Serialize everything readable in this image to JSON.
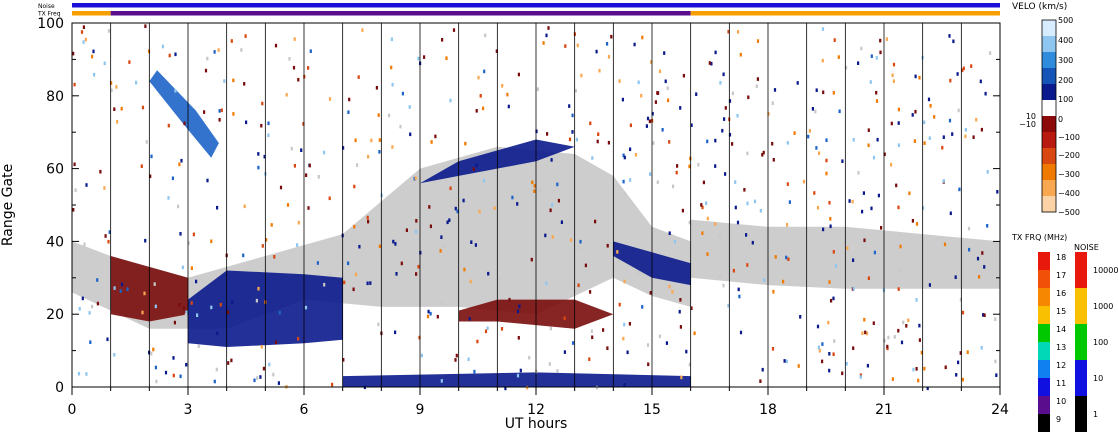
{
  "chart_data": {
    "type": "heatmap",
    "xlabel": "UT hours",
    "ylabel": "Range Gate",
    "xlim": [
      0,
      24
    ],
    "ylim": [
      0,
      100
    ],
    "x_ticks": [
      "0",
      "3",
      "6",
      "9",
      "12",
      "15",
      "18",
      "21",
      "24"
    ],
    "y_ticks": [
      "0",
      "20",
      "40",
      "60",
      "80",
      "100"
    ],
    "grid": "vertical lines every hour",
    "top_bars": {
      "noise_label": "Noise",
      "txfreq_label": "TX Freq",
      "noise_color": "#1a10d8",
      "txfreq_segments": [
        {
          "from": 0,
          "to": 1,
          "color": "#f5a000"
        },
        {
          "from": 1,
          "to": 16,
          "color": "#5a0d8c"
        },
        {
          "from": 16,
          "to": 24,
          "color": "#f5a000"
        }
      ]
    },
    "regions": [
      {
        "name": "ground-scatter",
        "color": "#c8c8c8",
        "points": [
          [
            0,
            40
          ],
          [
            1,
            36
          ],
          [
            3,
            30
          ],
          [
            5,
            36
          ],
          [
            7,
            42
          ],
          [
            9,
            60
          ],
          [
            11,
            66
          ],
          [
            13,
            64
          ],
          [
            14,
            58
          ],
          [
            15,
            44
          ],
          [
            16,
            40
          ],
          [
            16,
            22
          ],
          [
            15,
            25
          ],
          [
            14,
            30
          ],
          [
            12,
            20
          ],
          [
            10,
            22
          ],
          [
            8,
            22
          ],
          [
            6,
            24
          ],
          [
            4,
            16
          ],
          [
            2,
            16
          ],
          [
            0,
            26
          ]
        ]
      },
      {
        "name": "ground-scatter-late",
        "color": "#c8c8c8",
        "points": [
          [
            16,
            46
          ],
          [
            18,
            44
          ],
          [
            20,
            44
          ],
          [
            22,
            42
          ],
          [
            24,
            40
          ],
          [
            24,
            27
          ],
          [
            22,
            27
          ],
          [
            20,
            27
          ],
          [
            18,
            28
          ],
          [
            16,
            30
          ]
        ]
      },
      {
        "name": "blue-patch-morning",
        "color": "#0a1a8c",
        "points": [
          [
            4,
            32
          ],
          [
            6,
            31
          ],
          [
            7,
            30
          ],
          [
            7,
            13
          ],
          [
            6,
            12
          ],
          [
            4,
            11
          ],
          [
            3,
            12
          ],
          [
            3,
            24
          ]
        ]
      },
      {
        "name": "red-patch-noon",
        "color": "#7a0c0c",
        "points": [
          [
            10,
            21
          ],
          [
            11,
            24
          ],
          [
            13,
            24
          ],
          [
            14,
            20
          ],
          [
            13,
            16
          ],
          [
            11,
            18
          ],
          [
            10,
            18
          ]
        ]
      },
      {
        "name": "red-patch-early",
        "color": "#7a0c0c",
        "points": [
          [
            1,
            36
          ],
          [
            3,
            30
          ],
          [
            3,
            20
          ],
          [
            2,
            18
          ],
          [
            1,
            20
          ]
        ]
      },
      {
        "name": "blue-streak-early",
        "color": "#1e64c8",
        "points": [
          [
            2.2,
            87
          ],
          [
            3.2,
            76
          ],
          [
            3.8,
            67
          ],
          [
            3.6,
            63
          ],
          [
            2.9,
            72
          ],
          [
            2.0,
            84
          ]
        ]
      },
      {
        "name": "dark-streak-middle",
        "color": "#0a1a8c",
        "points": [
          [
            9,
            56
          ],
          [
            10,
            62
          ],
          [
            12,
            68
          ],
          [
            13,
            66
          ],
          [
            12,
            62
          ],
          [
            10,
            58
          ]
        ]
      },
      {
        "name": "blue-band-afternoon",
        "color": "#0a1a8c",
        "points": [
          [
            14,
            40
          ],
          [
            15,
            37
          ],
          [
            16,
            34
          ],
          [
            16,
            28
          ],
          [
            15,
            30
          ],
          [
            14,
            36
          ]
        ]
      },
      {
        "name": "bottom-band",
        "color": "#0a1a8c",
        "points": [
          [
            7,
            3
          ],
          [
            12,
            4
          ],
          [
            16,
            3
          ],
          [
            16,
            0
          ],
          [
            7,
            0
          ]
        ]
      }
    ],
    "velo_colorbar": {
      "title": "VELO (km/s)",
      "ticks": [
        "500",
        "400",
        "300",
        "200",
        "100",
        "10",
        "0",
        "−10",
        "−100",
        "−200",
        "−300",
        "−400",
        "−500"
      ],
      "gradient": [
        "#d8ecff",
        "#8ec6f0",
        "#2f8cdc",
        "#1555b8",
        "#0a1a8c",
        "#ffffff",
        "#8c0a0a",
        "#b81a10",
        "#d84810",
        "#f07a00",
        "#f8a850",
        "#fbd3a6"
      ]
    },
    "txfrq_colorbar": {
      "title": "TX FRQ (MHz)",
      "ticks": [
        "18",
        "17",
        "16",
        "15",
        "14",
        "13",
        "12",
        "11",
        "10",
        "9"
      ],
      "colors": [
        "#e8180c",
        "#f05008",
        "#f58800",
        "#f8c000",
        "#00c800",
        "#00d8b8",
        "#1080f0",
        "#1010e0",
        "#5a0d8c",
        "#000000"
      ]
    },
    "noise_colorbar": {
      "title": "NOISE",
      "ticks": [
        "10000",
        "1000",
        "100",
        "10",
        "1"
      ],
      "colors": [
        "#e8180c",
        "#f8c000",
        "#00c800",
        "#1010e0",
        "#000000"
      ]
    }
  }
}
